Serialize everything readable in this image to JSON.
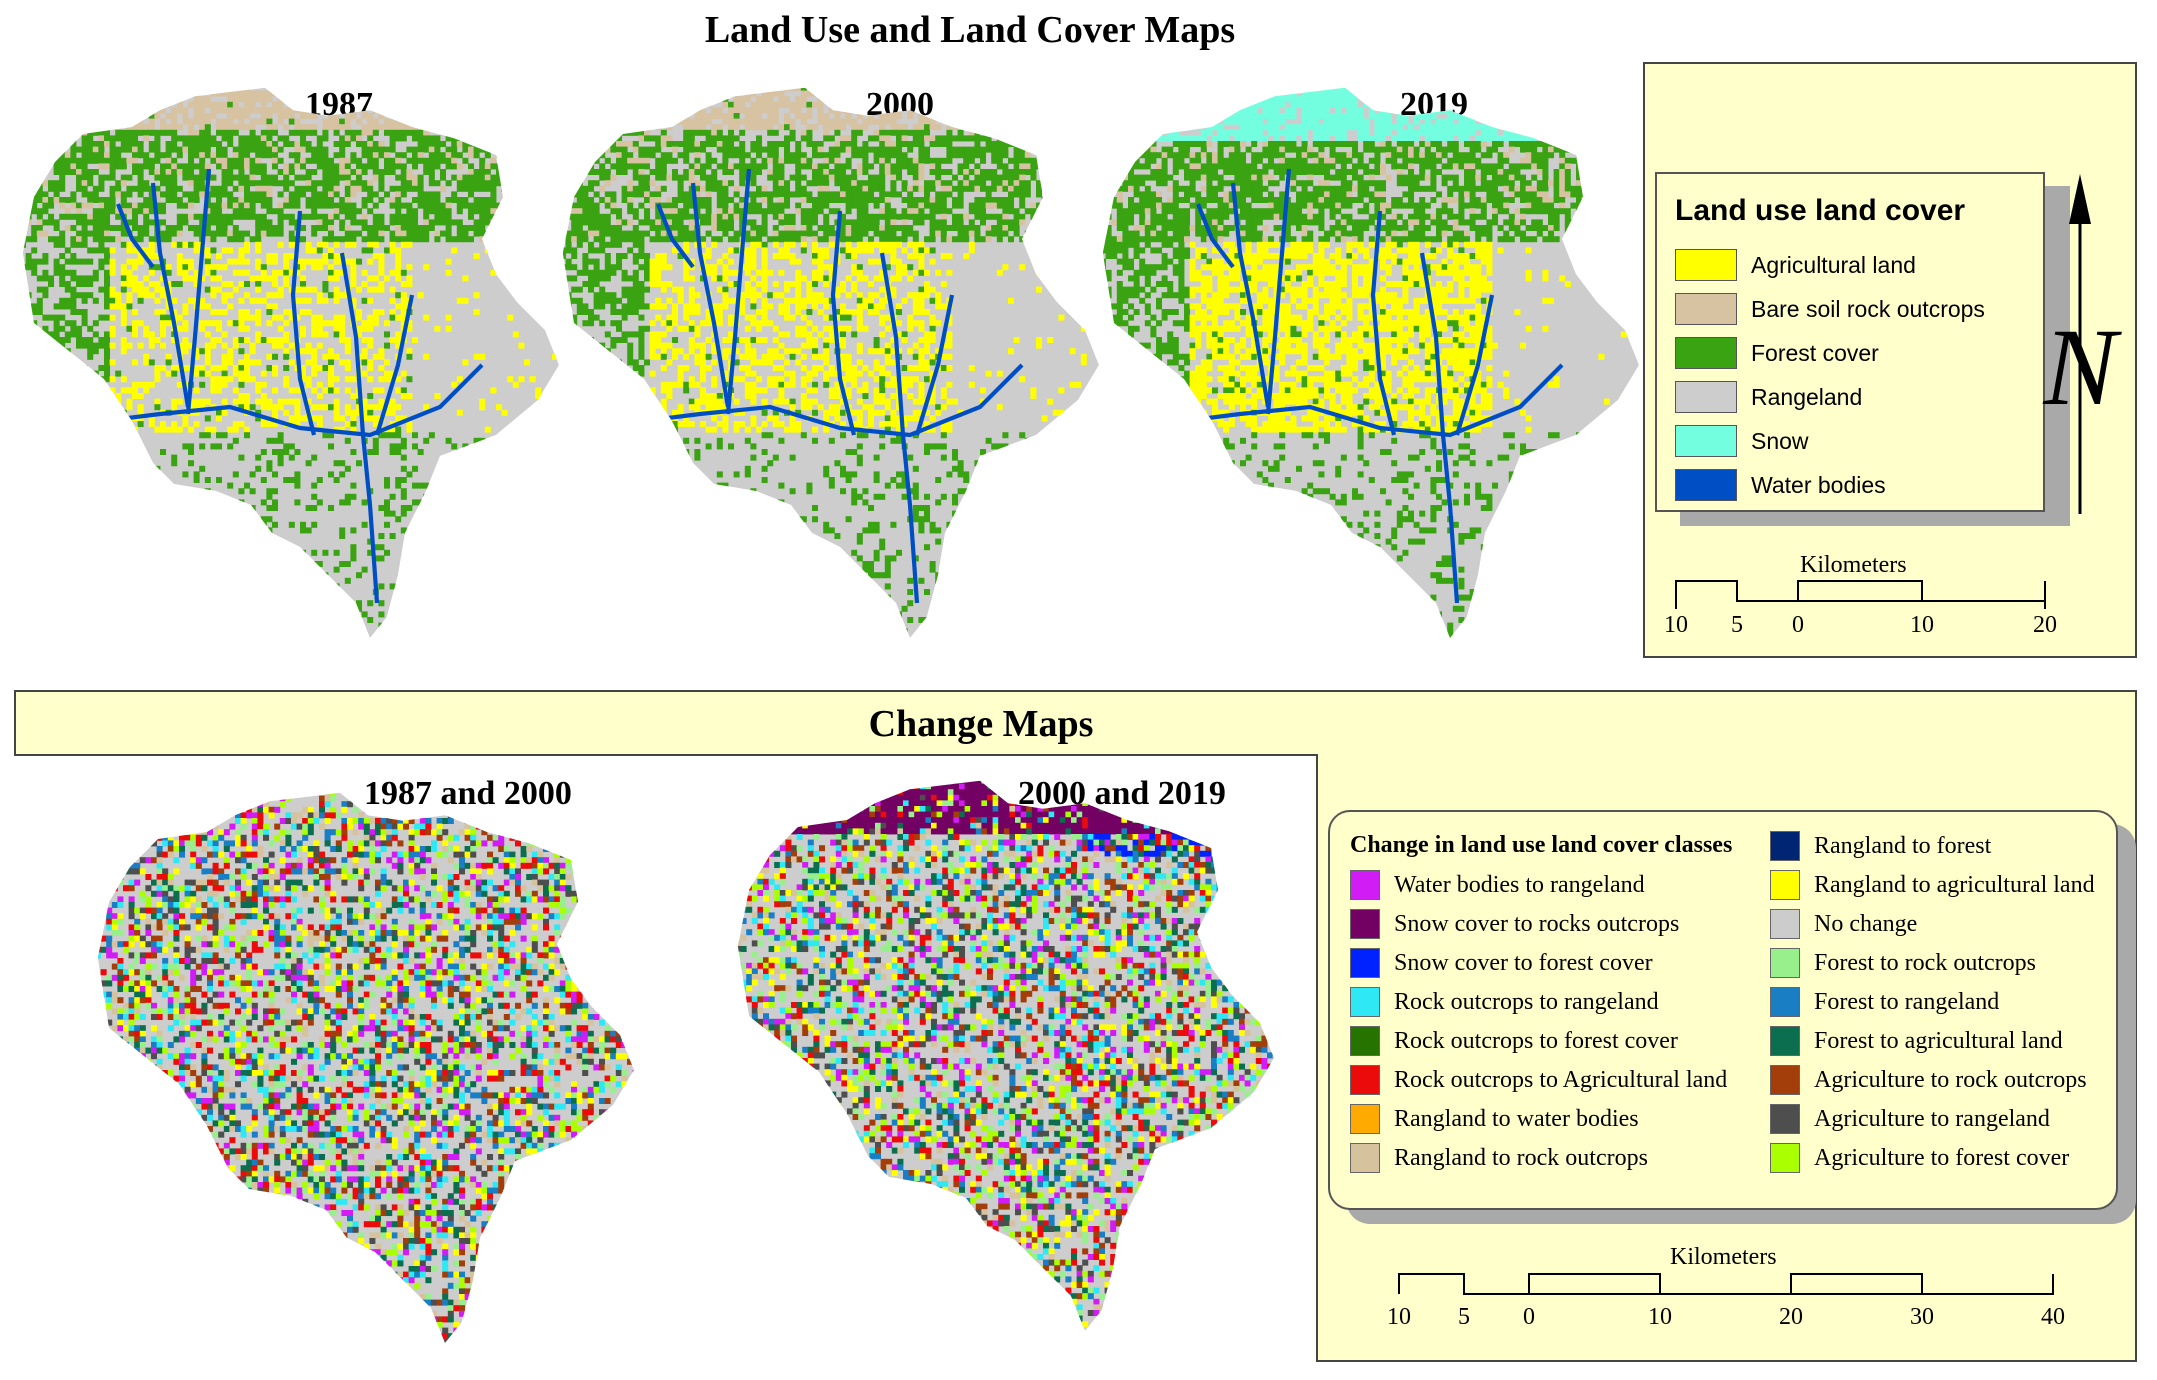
{
  "top_title": "Land Use and Land Cover Maps",
  "maps": [
    {
      "year": "1987"
    },
    {
      "year": "2000"
    },
    {
      "year": "2019"
    }
  ],
  "lulc_legend": {
    "title": "Land use land cover",
    "items": [
      {
        "label": "Agricultural land",
        "color": "#ffff00"
      },
      {
        "label": "Bare soil rock outcrops",
        "color": "#d7c2a2"
      },
      {
        "label": "Forest cover",
        "color": "#3aa312"
      },
      {
        "label": "Rangeland",
        "color": "#cdcdcd"
      },
      {
        "label": "Snow",
        "color": "#73ffdf"
      },
      {
        "label": "Water bodies",
        "color": "#004ec4"
      }
    ]
  },
  "north_arrow": {
    "letter": "N",
    "icon": "north-arrow-icon"
  },
  "scale_top": {
    "unit": "Kilometers",
    "ticks": [
      "10",
      "5",
      "0",
      "10",
      "20"
    ]
  },
  "change_title": "Change Maps",
  "change_maps": [
    {
      "label": "1987 and 2000"
    },
    {
      "label": "2000 and 2019"
    }
  ],
  "change_legend": {
    "title": "Change in land use land cover classes",
    "left": [
      {
        "label": "Water bodies to rangeland",
        "color": "#d21cf5"
      },
      {
        "label": "Snow cover to rocks outcrops",
        "color": "#730063"
      },
      {
        "label": "Snow cover to forest cover",
        "color": "#0022ff"
      },
      {
        "label": "Rock outcrops to rangeland",
        "color": "#2ee8f5"
      },
      {
        "label": "Rock outcrops to forest cover",
        "color": "#267300"
      },
      {
        "label": "Rock outcrops to Agricultural land",
        "color": "#ec0b0b"
      },
      {
        "label": "Rangland to water bodies",
        "color": "#ffaa00"
      },
      {
        "label": "Rangland to rock outcrops",
        "color": "#d7c29e"
      }
    ],
    "right": [
      {
        "label": "Rangland to forest",
        "color": "#002673"
      },
      {
        "label": "Rangland to agricultural land",
        "color": "#ffff00"
      },
      {
        "label": "No change",
        "color": "#cccccc"
      },
      {
        "label": "Forest to rock outcrops",
        "color": "#98f08d"
      },
      {
        "label": "Forest to rangeland",
        "color": "#1a7ec4"
      },
      {
        "label": "Forest to agricultural land",
        "color": "#0a6e4f"
      },
      {
        "label": "Agriculture to rock outcrops",
        "color": "#a33e0a"
      },
      {
        "label": "Agriculture to rangeland",
        "color": "#4e4e4e"
      },
      {
        "label": "Agriculture to forest cover",
        "color": "#aaff00"
      }
    ]
  },
  "scale_bottom": {
    "unit": "Kilometers",
    "ticks": [
      "10",
      "5",
      "0",
      "10",
      "20",
      "30",
      "40"
    ]
  }
}
